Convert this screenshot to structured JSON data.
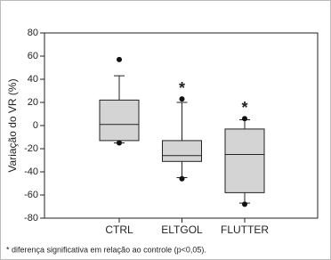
{
  "chart_data": {
    "type": "box",
    "y_label": "Variação do VR (%)",
    "categories": [
      "CTRL",
      "ELTGOL",
      "FLUTTER"
    ],
    "boxes": [
      {
        "whisker_low": -15,
        "q1": -13,
        "median": 1,
        "q3": 22,
        "whisker_high": 43,
        "outliers": [
          57,
          -15
        ]
      },
      {
        "whisker_low": -45,
        "q1": -31,
        "median": -26,
        "q3": -13,
        "whisker_high": 20,
        "outliers": [
          23,
          -46
        ]
      },
      {
        "whisker_low": -67,
        "q1": -58,
        "median": -25,
        "q3": -3,
        "whisker_high": 5,
        "outliers": [
          6,
          -68
        ]
      }
    ],
    "color": "#d4d4d4",
    "annotations": [
      {
        "category": "ELTGOL",
        "text": "*"
      },
      {
        "category": "FLUTTER",
        "text": "*"
      }
    ],
    "ylim": [
      -80,
      80
    ],
    "yticks": [
      -80,
      -60,
      -40,
      -20,
      0,
      20,
      40,
      60,
      80
    ],
    "note": "* diferença significativa em relação ao controle (p<0,05)."
  }
}
